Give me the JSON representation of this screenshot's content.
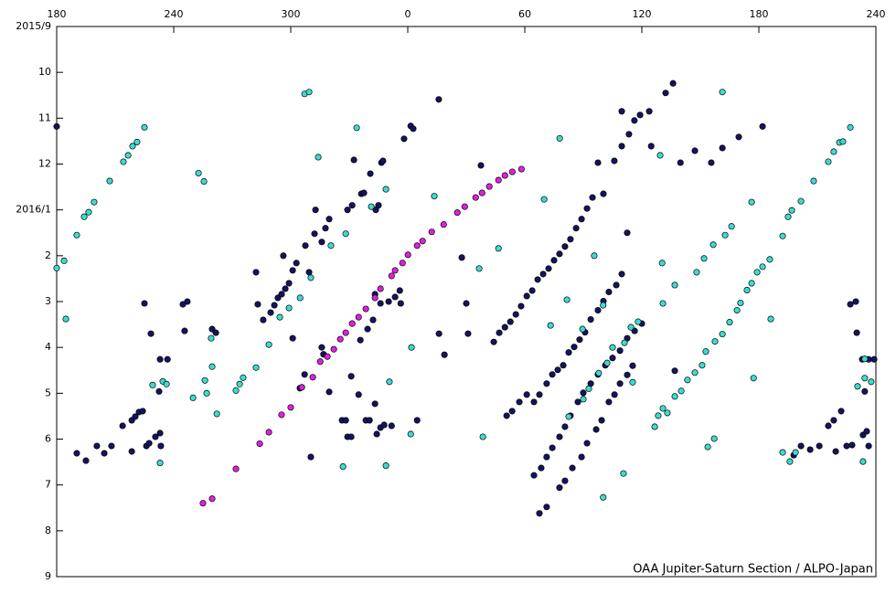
{
  "chart_data": {
    "type": "scatter",
    "annotation": "OAA Jupiter-Saturn Section / ALPO-Japan",
    "xlim": [
      180,
      600
    ],
    "xticks": [
      180,
      240,
      300,
      {
        "value": 360,
        "label": "0"
      },
      {
        "value": 420,
        "label": "60"
      },
      {
        "value": 480,
        "label": "120"
      },
      {
        "value": 540,
        "label": "180"
      },
      {
        "value": 600,
        "label": "240"
      }
    ],
    "ylim": [
      9,
      21
    ],
    "y_inverted": true,
    "yticks": [
      {
        "value": 9,
        "label": "2015/9"
      },
      10,
      11,
      12,
      {
        "value": 13,
        "label": "2016/1"
      },
      {
        "value": 14,
        "label": "2"
      },
      {
        "value": 15,
        "label": "3"
      },
      {
        "value": 16,
        "label": "4"
      },
      {
        "value": 17,
        "label": "5"
      },
      {
        "value": 18,
        "label": "6"
      },
      {
        "value": 19,
        "label": "7"
      },
      {
        "value": 20,
        "label": "8"
      },
      {
        "value": 21,
        "label": "9"
      }
    ],
    "series": [
      {
        "color": "#14145e",
        "x": [
          180,
          190.3,
          195.0,
          200.6,
          204.4,
          208.1,
          213.8,
          218.5,
          220.3,
          222.2,
          224.1,
          226.0,
          227.4,
          230.6,
          233.0,
          218.5,
          233.4,
          225.0,
          228.3,
          233.0,
          236.8,
          232.5,
          244.7,
          247.0,
          245.6,
          259.7,
          261.6,
          282.2,
          283.1,
          285.9,
          289.7,
          291.6,
          293.4,
          295.3,
          297.2,
          299.1,
          301.0,
          302.9,
          307.5,
          296.2,
          309.4,
          312.2,
          315.9,
          317.8,
          319.7,
          312.7,
          329.1,
          331.5,
          336.2,
          337.5,
          332.4,
          340.8,
          346.5,
          347.3,
          343.6,
          345.0,
          358.1,
          361.5,
          362.8,
          375.9,
          397.5,
          301.0,
          304.7,
          307.1,
          310.3,
          315.9,
          316.8,
          319.7,
          326.3,
          328.2,
          329.1,
          331.0,
          334.8,
          338.5,
          340.4,
          343.2,
          344.1,
          346.0,
          347.9,
          351.7,
          331.0,
          335.7,
          339.4,
          342.2,
          343.2,
          346.0,
          350.2,
          353.5,
          355.9,
          356.4,
          364.8,
          376.0,
          378.8,
          387.7,
          390.0,
          390.9,
          404.1,
          406.9,
          409.8,
          412.6,
          415.4,
          418.1,
          421.0,
          423.8,
          426.6,
          429.4,
          432.2,
          435.0,
          437.8,
          440.6,
          443.4,
          446.3,
          449.1,
          451.9,
          454.7,
          457.5,
          460.3,
          465.9,
          469.7,
          473.4,
          476.2,
          479.1,
          483.8,
          492.2,
          496.0,
          469.7,
          410.7,
          413.5,
          417.2,
          421.0,
          424.7,
          427.5,
          431.2,
          434.1,
          436.9,
          439.7,
          442.5,
          445.3,
          448.1,
          450.9,
          453.8,
          457.5,
          460.3,
          463.1,
          466.9,
          469.7,
          472.5,
          424.7,
          428.4,
          431.2,
          434.1,
          437.8,
          440.6,
          443.4,
          447.2,
          450.0,
          453.8,
          457.5,
          461.3,
          465.0,
          468.8,
          472.5,
          476.3,
          480.0,
          427.5,
          431.2,
          437.8,
          440.6,
          444.4,
          449.1,
          451.9,
          456.6,
          459.4,
          463.1,
          466.0,
          468.8,
          472.5,
          475.3,
          484.8,
          499.8,
          507.2,
          515.6,
          521.3,
          529.7,
          541.9,
          496.9,
          557.9,
          561.6,
          566.3,
          571.0,
          575.6,
          578.4,
          582.2,
          579.4,
          585.0,
          587.8,
          593.4,
          595.3,
          596.3,
          586.9,
          589.7,
          590.2,
          593.0,
          596.3,
          599.1,
          594.3
        ],
        "values": [
          11.18,
          18.31,
          18.47,
          18.15,
          18.31,
          18.15,
          17.71,
          17.59,
          17.51,
          17.41,
          17.39,
          18.15,
          18.09,
          17.95,
          17.87,
          18.27,
          18.15,
          15.04,
          15.7,
          16.26,
          16.26,
          16.96,
          15.06,
          15.0,
          15.64,
          15.6,
          15.68,
          14.36,
          15.06,
          15.4,
          15.24,
          15.08,
          14.92,
          14.84,
          14.72,
          14.6,
          14.32,
          14.16,
          13.78,
          14.0,
          14.36,
          13.52,
          13.7,
          13.4,
          13.2,
          13.0,
          13.0,
          12.9,
          12.65,
          12.63,
          11.91,
          12.21,
          11.97,
          11.93,
          13.0,
          12.9,
          11.45,
          11.17,
          11.23,
          10.59,
          12.03,
          15.8,
          16.89,
          16.59,
          18.39,
          16.0,
          16.15,
          16.97,
          17.59,
          17.59,
          17.95,
          16.63,
          17.03,
          17.59,
          17.59,
          17.23,
          17.89,
          17.75,
          17.69,
          17.71,
          17.95,
          15.84,
          15.6,
          15.4,
          14.84,
          15.04,
          15.0,
          14.9,
          14.76,
          15.04,
          17.59,
          15.7,
          16.16,
          14.04,
          15.04,
          15.7,
          15.88,
          15.68,
          15.56,
          15.44,
          15.28,
          15.1,
          14.88,
          14.76,
          14.52,
          14.4,
          14.28,
          14.1,
          13.96,
          13.8,
          13.64,
          13.4,
          13.2,
          12.97,
          12.73,
          11.97,
          12.65,
          11.93,
          11.61,
          11.35,
          11.05,
          10.93,
          10.85,
          10.45,
          10.24,
          10.85,
          17.49,
          17.39,
          17.19,
          17.03,
          17.19,
          17.03,
          16.79,
          16.59,
          16.49,
          16.39,
          16.11,
          15.99,
          15.83,
          15.67,
          15.39,
          15.19,
          14.99,
          14.79,
          14.64,
          14.4,
          13.5,
          18.79,
          18.63,
          18.39,
          18.19,
          17.95,
          17.73,
          17.49,
          17.19,
          16.99,
          16.79,
          16.59,
          16.39,
          16.23,
          16.07,
          15.8,
          15.64,
          15.48,
          19.62,
          19.48,
          19.06,
          18.91,
          18.63,
          18.39,
          18.09,
          17.79,
          17.59,
          17.19,
          17.03,
          16.79,
          16.6,
          16.4,
          11.61,
          11.97,
          11.71,
          11.97,
          11.65,
          11.41,
          11.18,
          16.51,
          18.35,
          18.15,
          18.23,
          18.15,
          17.71,
          17.59,
          17.39,
          18.27,
          18.15,
          18.13,
          17.91,
          17.83,
          18.15,
          15.06,
          15.0,
          15.68,
          16.26,
          16.26,
          16.26,
          16.96
        ]
      },
      {
        "color": "#3cdcd0",
        "x": [
          180,
          183.8,
          190.3,
          194.1,
          196.4,
          199.2,
          207.2,
          214.2,
          216.6,
          218.9,
          221.2,
          225.0,
          184.7,
          252.7,
          255.5,
          229.2,
          234.4,
          236.3,
          233.0,
          249.9,
          256.0,
          259.7,
          262.1,
          256.9,
          259.2,
          271.9,
          273.8,
          275.6,
          282.2,
          288.8,
          294.4,
          299.1,
          304.8,
          310.3,
          320.6,
          328.2,
          341.3,
          348.8,
          333.8,
          307.1,
          309.4,
          314.1,
          326.8,
          348.8,
          350.6,
          361.9,
          361.5,
          373.6,
          406.5,
          396.6,
          398.5,
          429.9,
          433.2,
          437.9,
          441.6,
          449.6,
          442.5,
          460.2,
          455.6,
          460.2,
          450,
          452.8,
          457.9,
          462.2,
          465.0,
          471.1,
          474.4,
          478.1,
          470.6,
          475.3,
          489.4,
          490.4,
          490.8,
          486.6,
          488.4,
          490.8,
          493.1,
          496.9,
          500.2,
          503.4,
          507.2,
          510.9,
          512.8,
          517.5,
          521.3,
          525.0,
          528.8,
          530.6,
          533.9,
          536.3,
          539.1,
          541.9,
          545.6,
          496.9,
          508.1,
          511.9,
          516.6,
          526.0,
          521.3,
          522.7,
          536.3,
          546.1,
          537.3,
          513.8,
          517.1,
          552.2,
          555.0,
          556.9,
          561.6,
          568.1,
          575.6,
          578.4,
          581.3,
          583.1,
          586.9,
          552.2,
          555.9,
          558.8,
          593.4,
          594.3,
          597.6,
          590.6,
          594.3
        ],
        "values": [
          14.27,
          14.11,
          13.55,
          13.15,
          13.05,
          12.83,
          12.37,
          11.95,
          11.81,
          11.61,
          11.52,
          11.2,
          15.38,
          12.2,
          12.38,
          16.82,
          16.74,
          16.8,
          18.52,
          17.1,
          16.72,
          16.42,
          17.45,
          17.0,
          15.8,
          16.94,
          16.8,
          16.66,
          16.44,
          15.94,
          15.34,
          15.14,
          14.92,
          14.48,
          13.78,
          13.52,
          12.93,
          12.55,
          11.21,
          10.47,
          10.43,
          11.85,
          18.6,
          18.58,
          16.75,
          16.0,
          17.89,
          12.7,
          13.84,
          14.28,
          17.95,
          12.77,
          15.52,
          11.44,
          14.96,
          15.6,
          17.51,
          19.27,
          14.0,
          15.08,
          17.13,
          16.9,
          16.56,
          16.34,
          16.0,
          15.9,
          15.56,
          15.44,
          18.75,
          16.76,
          11.81,
          14.16,
          15.04,
          17.73,
          17.49,
          17.33,
          17.43,
          17.07,
          16.95,
          16.71,
          16.55,
          16.39,
          16.09,
          15.87,
          15.71,
          15.45,
          15.19,
          15.03,
          14.75,
          14.6,
          14.36,
          14.24,
          14.08,
          14.64,
          14.36,
          14.06,
          13.76,
          13.36,
          10.43,
          13.55,
          12.83,
          15.38,
          16.67,
          18.17,
          17.99,
          13.57,
          13.15,
          13.01,
          12.81,
          12.37,
          11.95,
          11.73,
          11.53,
          11.51,
          11.2,
          18.29,
          18.49,
          18.29,
          18.49,
          16.67,
          16.75,
          16.85,
          16.25
        ]
      },
      {
        "color": "#e020e0",
        "x": [
          255,
          259.7,
          271.9,
          284.1,
          288.8,
          295.3,
          300.0,
          305.7,
          311.3,
          315.1,
          318.8,
          322.1,
          325.4,
          328.2,
          331.5,
          334.8,
          338.5,
          343.2,
          346.0,
          351.7,
          353.5,
          357.3,
          360.1,
          364.8,
          367.6,
          372.3,
          378.4,
          385.4,
          389.2,
          394.8,
          398.1,
          401.8,
          406.5,
          409.8,
          413.6,
          418.3
        ],
        "values": [
          19.4,
          19.3,
          18.65,
          18.1,
          17.85,
          17.47,
          17.31,
          16.87,
          16.65,
          16.31,
          16.2,
          16.04,
          15.82,
          15.68,
          15.48,
          15.34,
          15.16,
          14.92,
          14.72,
          14.44,
          14.32,
          14.16,
          13.98,
          13.78,
          13.68,
          13.48,
          13.32,
          13.06,
          12.93,
          12.73,
          12.63,
          12.49,
          12.35,
          12.25,
          12.17,
          12.11
        ]
      }
    ]
  }
}
